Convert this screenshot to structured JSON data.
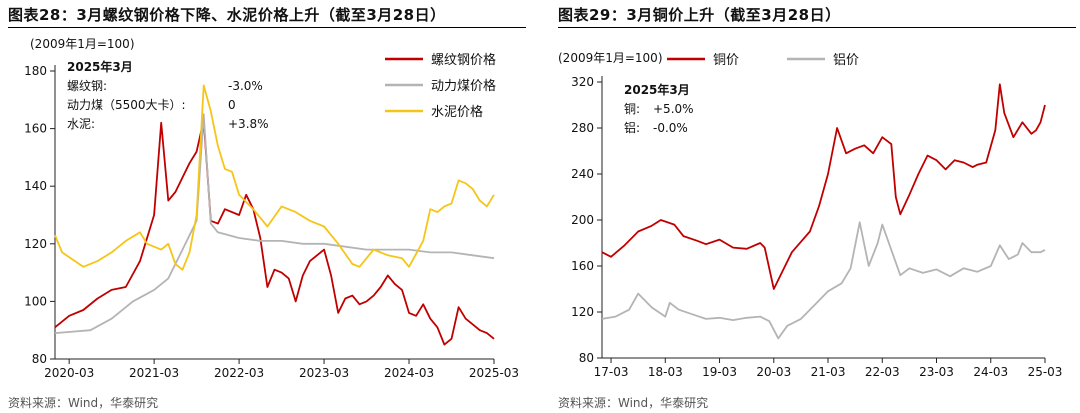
{
  "left": {
    "title": "图表28：3月螺纹钢价格下降、水泥价格上升（截至3月28日）",
    "source": "资料来源：Wind，华泰研究",
    "chart_data": {
      "type": "line",
      "unit_note": "(2009年1月=100)",
      "xlabel": "",
      "ylabel": "",
      "xticks": [
        "2020-03",
        "2021-03",
        "2022-03",
        "2023-03",
        "2024-03",
        "2025-03"
      ],
      "xlim": [
        "2020-01",
        "2025-03"
      ],
      "ylim": [
        80,
        180
      ],
      "yticks": [
        80,
        100,
        120,
        140,
        160,
        180
      ],
      "legend_position": "top-right",
      "annotation": {
        "title": "2025年3月",
        "rows": [
          {
            "label": "螺纹钢:",
            "value": "-3.0%"
          },
          {
            "label": "动力煤（5500大卡）:",
            "value": "0"
          },
          {
            "label": "水泥:",
            "value": "+3.8%"
          }
        ]
      },
      "series": [
        {
          "name": "螺纹钢价格",
          "color": "#c00000",
          "points": [
            [
              "2020-01",
              91
            ],
            [
              "2020-03",
              95
            ],
            [
              "2020-05",
              97
            ],
            [
              "2020-07",
              101
            ],
            [
              "2020-09",
              104
            ],
            [
              "2020-11",
              105
            ],
            [
              "2021-01",
              114
            ],
            [
              "2021-03",
              130
            ],
            [
              "2021-04",
              162
            ],
            [
              "2021-05",
              135
            ],
            [
              "2021-06",
              138
            ],
            [
              "2021-08",
              148
            ],
            [
              "2021-09",
              152
            ],
            [
              "2021-10",
              163
            ],
            [
              "2021-11",
              128
            ],
            [
              "2021-12",
              127
            ],
            [
              "2022-01",
              132
            ],
            [
              "2022-03",
              130
            ],
            [
              "2022-04",
              137
            ],
            [
              "2022-05",
              132
            ],
            [
              "2022-06",
              122
            ],
            [
              "2022-07",
              105
            ],
            [
              "2022-08",
              111
            ],
            [
              "2022-09",
              110
            ],
            [
              "2022-10",
              108
            ],
            [
              "2022-11",
              100
            ],
            [
              "2022-12",
              109
            ],
            [
              "2023-01",
              114
            ],
            [
              "2023-03",
              118
            ],
            [
              "2023-04",
              109
            ],
            [
              "2023-05",
              96
            ],
            [
              "2023-06",
              101
            ],
            [
              "2023-07",
              102
            ],
            [
              "2023-08",
              99
            ],
            [
              "2023-09",
              100
            ],
            [
              "2023-10",
              102
            ],
            [
              "2023-11",
              105
            ],
            [
              "2023-12",
              109
            ],
            [
              "2024-01",
              106
            ],
            [
              "2024-02",
              104
            ],
            [
              "2024-03",
              96
            ],
            [
              "2024-04",
              95
            ],
            [
              "2024-05",
              99
            ],
            [
              "2024-06",
              94
            ],
            [
              "2024-07",
              91
            ],
            [
              "2024-08",
              85
            ],
            [
              "2024-09",
              87
            ],
            [
              "2024-10",
              98
            ],
            [
              "2024-11",
              94
            ],
            [
              "2024-12",
              92
            ],
            [
              "2025-01",
              90
            ],
            [
              "2025-02",
              89
            ],
            [
              "2025-03",
              87
            ]
          ]
        },
        {
          "name": "动力煤价格",
          "color": "#b4b4b4",
          "points": [
            [
              "2020-01",
              89
            ],
            [
              "2020-06",
              90
            ],
            [
              "2020-09",
              94
            ],
            [
              "2020-12",
              100
            ],
            [
              "2021-03",
              104
            ],
            [
              "2021-05",
              108
            ],
            [
              "2021-07",
              118
            ],
            [
              "2021-09",
              128
            ],
            [
              "2021-10",
              165
            ],
            [
              "2021-11",
              127
            ],
            [
              "2021-12",
              124
            ],
            [
              "2022-03",
              122
            ],
            [
              "2022-06",
              121
            ],
            [
              "2022-09",
              121
            ],
            [
              "2022-12",
              120
            ],
            [
              "2023-03",
              120
            ],
            [
              "2023-06",
              119
            ],
            [
              "2023-09",
              118
            ],
            [
              "2023-12",
              118
            ],
            [
              "2024-03",
              118
            ],
            [
              "2024-06",
              117
            ],
            [
              "2024-09",
              117
            ],
            [
              "2024-12",
              116
            ],
            [
              "2025-03",
              115
            ]
          ]
        },
        {
          "name": "水泥价格",
          "color": "#f5c518",
          "points": [
            [
              "2020-01",
              123
            ],
            [
              "2020-02",
              117
            ],
            [
              "2020-05",
              112
            ],
            [
              "2020-07",
              114
            ],
            [
              "2020-09",
              117
            ],
            [
              "2020-11",
              121
            ],
            [
              "2021-01",
              124
            ],
            [
              "2021-02",
              120
            ],
            [
              "2021-04",
              118
            ],
            [
              "2021-05",
              120
            ],
            [
              "2021-06",
              113
            ],
            [
              "2021-07",
              111
            ],
            [
              "2021-08",
              117
            ],
            [
              "2021-09",
              130
            ],
            [
              "2021-10",
              175
            ],
            [
              "2021-11",
              166
            ],
            [
              "2021-12",
              154
            ],
            [
              "2022-01",
              146
            ],
            [
              "2022-02",
              145
            ],
            [
              "2022-03",
              137
            ],
            [
              "2022-05",
              132
            ],
            [
              "2022-07",
              126
            ],
            [
              "2022-09",
              133
            ],
            [
              "2022-11",
              131
            ],
            [
              "2023-01",
              128
            ],
            [
              "2023-03",
              126
            ],
            [
              "2023-05",
              120
            ],
            [
              "2023-07",
              113
            ],
            [
              "2023-08",
              112
            ],
            [
              "2023-10",
              118
            ],
            [
              "2023-12",
              116
            ],
            [
              "2024-02",
              115
            ],
            [
              "2024-03",
              112
            ],
            [
              "2024-05",
              121
            ],
            [
              "2024-06",
              132
            ],
            [
              "2024-07",
              131
            ],
            [
              "2024-08",
              133
            ],
            [
              "2024-09",
              134
            ],
            [
              "2024-10",
              142
            ],
            [
              "2024-11",
              141
            ],
            [
              "2024-12",
              139
            ],
            [
              "2025-01",
              135
            ],
            [
              "2025-02",
              133
            ],
            [
              "2025-03",
              137
            ]
          ]
        }
      ]
    }
  },
  "right": {
    "title": "图表29：3月铜价上升（截至3月28日）",
    "source": "资料来源：Wind，华泰研究",
    "chart_data": {
      "type": "line",
      "unit_note": "(2009年1月=100)",
      "xlabel": "",
      "ylabel": "",
      "xticks": [
        "17-03",
        "18-03",
        "19-03",
        "20-03",
        "21-03",
        "22-03",
        "23-03",
        "24-03",
        "25-03"
      ],
      "xlim": [
        "2017-01",
        "2025-03"
      ],
      "ylim": [
        80,
        320
      ],
      "yticks": [
        80,
        120,
        160,
        200,
        240,
        280,
        320
      ],
      "legend_position": "top-left",
      "annotation": {
        "title": "2025年3月",
        "rows": [
          {
            "label": "铜:",
            "value": "+5.0%"
          },
          {
            "label": "铝:",
            "value": "-0.0%"
          }
        ]
      },
      "series": [
        {
          "name": "铜价",
          "color": "#c00000",
          "points": [
            [
              "2017-01",
              172
            ],
            [
              "2017-03",
              168
            ],
            [
              "2017-06",
              178
            ],
            [
              "2017-09",
              190
            ],
            [
              "2017-12",
              195
            ],
            [
              "2018-02",
              200
            ],
            [
              "2018-05",
              196
            ],
            [
              "2018-07",
              186
            ],
            [
              "2018-10",
              182
            ],
            [
              "2018-12",
              179
            ],
            [
              "2019-03",
              183
            ],
            [
              "2019-06",
              176
            ],
            [
              "2019-09",
              175
            ],
            [
              "2019-12",
              180
            ],
            [
              "2020-01",
              176
            ],
            [
              "2020-03",
              140
            ],
            [
              "2020-05",
              156
            ],
            [
              "2020-07",
              172
            ],
            [
              "2020-09",
              181
            ],
            [
              "2020-11",
              190
            ],
            [
              "2021-01",
              212
            ],
            [
              "2021-03",
              240
            ],
            [
              "2021-05",
              280
            ],
            [
              "2021-07",
              258
            ],
            [
              "2021-09",
              262
            ],
            [
              "2021-11",
              265
            ],
            [
              "2022-01",
              258
            ],
            [
              "2022-03",
              272
            ],
            [
              "2022-05",
              266
            ],
            [
              "2022-06",
              220
            ],
            [
              "2022-07",
              205
            ],
            [
              "2022-09",
              222
            ],
            [
              "2022-11",
              240
            ],
            [
              "2023-01",
              256
            ],
            [
              "2023-03",
              252
            ],
            [
              "2023-05",
              244
            ],
            [
              "2023-07",
              252
            ],
            [
              "2023-09",
              250
            ],
            [
              "2023-11",
              246
            ],
            [
              "2023-12",
              248
            ],
            [
              "2024-02",
              250
            ],
            [
              "2024-04",
              278
            ],
            [
              "2024-05",
              318
            ],
            [
              "2024-06",
              293
            ],
            [
              "2024-08",
              272
            ],
            [
              "2024-10",
              285
            ],
            [
              "2024-12",
              275
            ],
            [
              "2025-01",
              278
            ],
            [
              "2025-02",
              285
            ],
            [
              "2025-03",
              300
            ]
          ]
        },
        {
          "name": "铝价",
          "color": "#b4b4b4",
          "points": [
            [
              "2017-01",
              114
            ],
            [
              "2017-04",
              116
            ],
            [
              "2017-07",
              122
            ],
            [
              "2017-09",
              136
            ],
            [
              "2017-12",
              124
            ],
            [
              "2018-03",
              116
            ],
            [
              "2018-04",
              128
            ],
            [
              "2018-06",
              122
            ],
            [
              "2018-09",
              118
            ],
            [
              "2018-12",
              114
            ],
            [
              "2019-03",
              115
            ],
            [
              "2019-06",
              113
            ],
            [
              "2019-09",
              115
            ],
            [
              "2019-12",
              116
            ],
            [
              "2020-02",
              112
            ],
            [
              "2020-04",
              97
            ],
            [
              "2020-06",
              108
            ],
            [
              "2020-09",
              114
            ],
            [
              "2020-12",
              126
            ],
            [
              "2021-03",
              138
            ],
            [
              "2021-06",
              145
            ],
            [
              "2021-08",
              158
            ],
            [
              "2021-10",
              198
            ],
            [
              "2021-12",
              160
            ],
            [
              "2022-02",
              180
            ],
            [
              "2022-03",
              196
            ],
            [
              "2022-05",
              174
            ],
            [
              "2022-07",
              152
            ],
            [
              "2022-09",
              158
            ],
            [
              "2022-12",
              154
            ],
            [
              "2023-03",
              157
            ],
            [
              "2023-06",
              151
            ],
            [
              "2023-09",
              158
            ],
            [
              "2023-12",
              155
            ],
            [
              "2024-03",
              160
            ],
            [
              "2024-05",
              178
            ],
            [
              "2024-07",
              166
            ],
            [
              "2024-09",
              170
            ],
            [
              "2024-10",
              180
            ],
            [
              "2024-12",
              172
            ],
            [
              "2025-02",
              172
            ],
            [
              "2025-03",
              174
            ]
          ]
        }
      ]
    }
  }
}
